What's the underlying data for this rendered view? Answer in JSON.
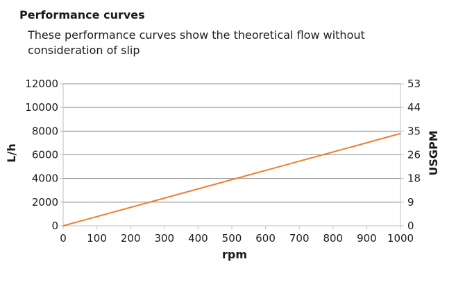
{
  "title": "Performance curves",
  "subtitle": "These performance curves show the theoretical flow without consideration of slip",
  "colors": {
    "series": "#ed7d31",
    "grid": "#8c8c8c",
    "axis": "#bfbfbf"
  },
  "chart_data": {
    "type": "line",
    "title": "Performance curves",
    "subtitle": "These performance curves show the theoretical flow without consideration of slip",
    "xlabel": "rpm",
    "ylabel": "L/h",
    "y2label": "USGPM",
    "xlim": [
      0,
      1000
    ],
    "ylim": [
      0,
      12000
    ],
    "xticks": [
      0,
      100,
      200,
      300,
      400,
      500,
      600,
      700,
      800,
      900,
      1000
    ],
    "yticks": [
      0,
      2000,
      4000,
      6000,
      8000,
      10000,
      12000
    ],
    "y2ticks": [
      "0",
      "9",
      "18",
      "26",
      "35",
      "44",
      "53"
    ],
    "grid": true,
    "legend": "none",
    "series": [
      {
        "x": [
          0,
          1000
        ],
        "values": [
          0,
          7800
        ]
      }
    ]
  }
}
